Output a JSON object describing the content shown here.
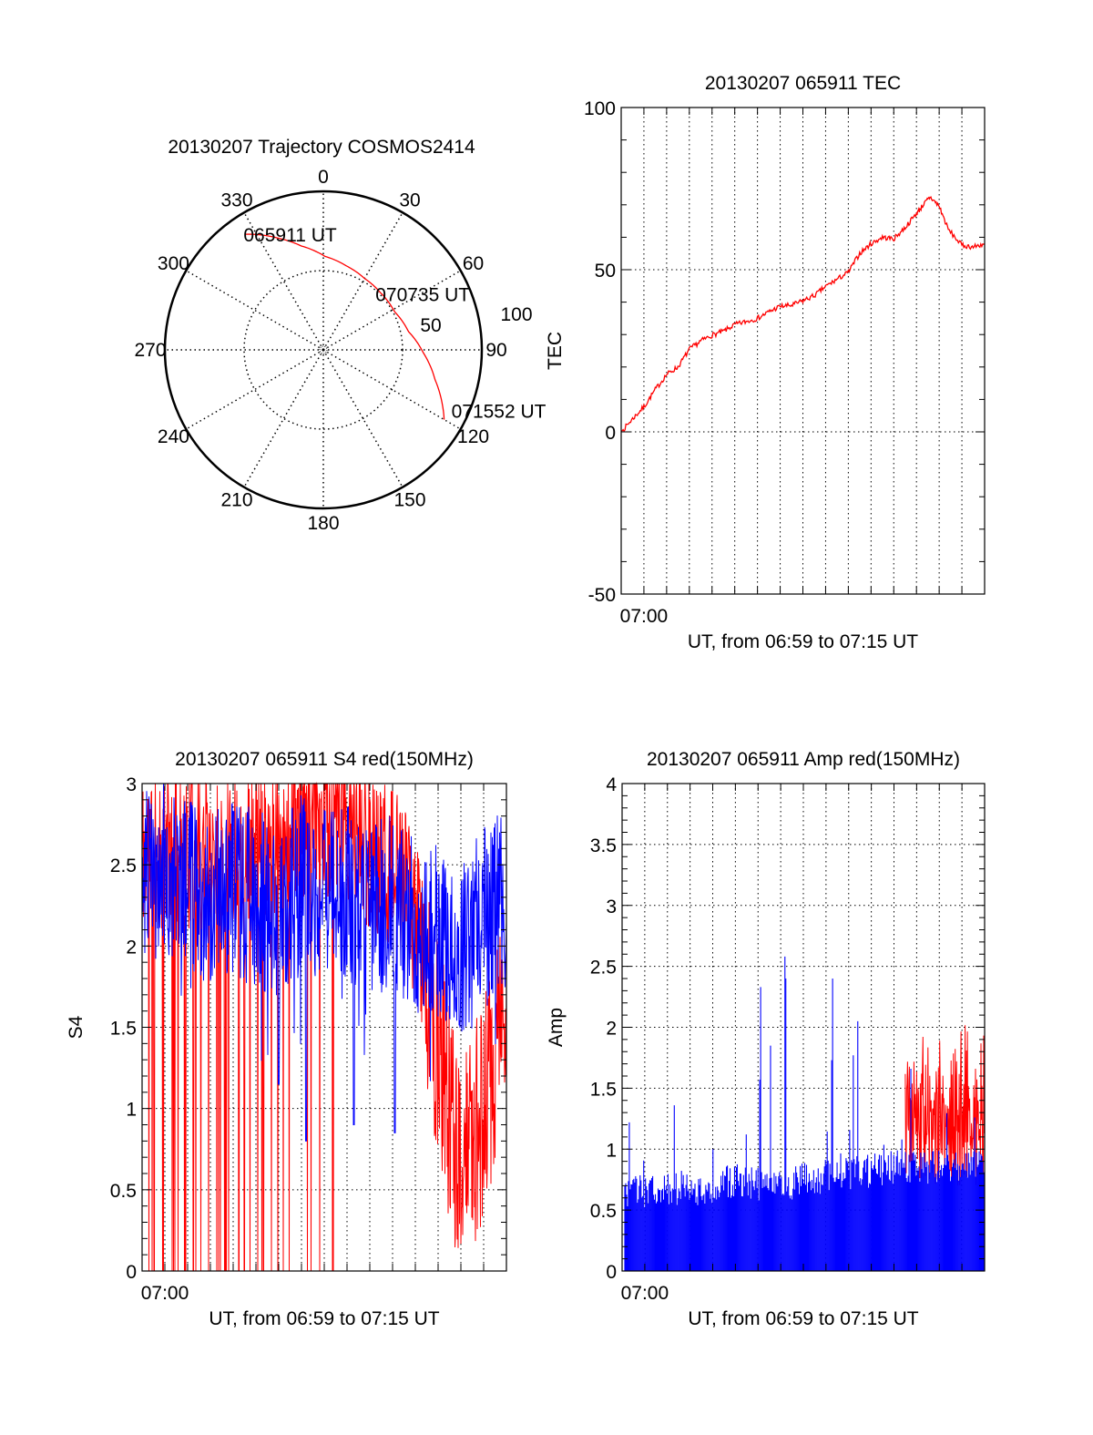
{
  "colors": {
    "red": "#ff0000",
    "blue": "#0000ff",
    "axis": "#000000"
  },
  "chart_data": [
    {
      "id": "polar",
      "type": "polar",
      "title": "20130207 Trajectory COSMOS2414",
      "angle_ticks": [
        "0",
        "30",
        "60",
        "90",
        "120",
        "150",
        "180",
        "210",
        "240",
        "270",
        "300",
        "330"
      ],
      "radial_ticks": [
        "50",
        "100"
      ],
      "radial_max": 100,
      "grid": true,
      "trajectory": [
        [
          326,
          88
        ],
        [
          338,
          76
        ],
        [
          348,
          67
        ],
        [
          1,
          59
        ],
        [
          15,
          55
        ],
        [
          30,
          52
        ],
        [
          45,
          51
        ],
        [
          62,
          51
        ],
        [
          78,
          55
        ],
        [
          91.5,
          63
        ],
        [
          105,
          73
        ],
        [
          120,
          88
        ]
      ],
      "annotations": [
        {
          "label": "065911 UT",
          "az": 326,
          "r": 88
        },
        {
          "label": "070735 UT",
          "az": 44,
          "r": 49
        },
        {
          "label": "071552 UT",
          "az": 120,
          "r": 88
        }
      ],
      "side_label": "TEC"
    },
    {
      "id": "tec",
      "type": "line",
      "title": "20130207 065911 TEC",
      "xlabel": "UT, from 06:59 to 07:15 UT",
      "ylabel": "TEC",
      "x_unit": "minutes after 06:59",
      "xlim": [
        0,
        16
      ],
      "ylim": [
        -50,
        100
      ],
      "yticks": [
        "100",
        "50",
        "0",
        "-50"
      ],
      "xtick_label": "07:00",
      "grid": true,
      "series": [
        {
          "name": "TEC",
          "color": "#ff0000",
          "x": [
            0,
            0.5,
            1,
            1.5,
            2,
            2.5,
            3,
            3.5,
            4,
            4.5,
            5,
            5.5,
            6,
            6.5,
            7,
            7.5,
            8,
            8.5,
            9,
            9.5,
            10,
            10.5,
            11,
            11.5,
            12,
            12.5,
            13,
            13.3,
            13.6,
            14,
            14.4,
            15,
            15.5,
            16
          ],
          "y": [
            0,
            4,
            7.7,
            13,
            17.7,
            20,
            25.4,
            28,
            29.8,
            31,
            33,
            34,
            35,
            37,
            38.7,
            39,
            40.4,
            42,
            44.8,
            47,
            49.2,
            55,
            58,
            60,
            59.5,
            63,
            67.3,
            70,
            72.4,
            69.6,
            62.4,
            57.5,
            57,
            58
          ]
        }
      ]
    },
    {
      "id": "s4",
      "type": "line",
      "title": "20130207 065911 S4 red(150MHz)",
      "xlabel": "UT, from 06:59 to 07:15 UT",
      "ylabel": "S4",
      "x_unit": "minutes after 06:59",
      "xlim": [
        0,
        16
      ],
      "ylim": [
        0,
        3
      ],
      "yticks": [
        "3",
        "2.5",
        "2",
        "1.5",
        "1",
        "0.5",
        "0"
      ],
      "xtick_label": "07:00",
      "grid": true,
      "series": [
        {
          "name": "red",
          "color": "#ff0000",
          "minute_mean": [
            2.6,
            2.6,
            2.6,
            2.6,
            2.6,
            2.6,
            2.7,
            2.8,
            2.8,
            2.7,
            2.6,
            2.5,
            2.2,
            1.4,
            0.55,
            1.0,
            1.6
          ],
          "spread": 0.5,
          "dropout_rate": [
            0.3,
            0.35,
            0.35,
            0.3,
            0.3,
            0.3,
            0.3,
            0.2,
            0.1,
            0.02,
            0,
            0,
            0,
            0,
            0,
            0,
            0
          ]
        },
        {
          "name": "blue",
          "color": "#0000ff",
          "minute_mean": [
            2.4,
            2.5,
            2.4,
            2.3,
            2.35,
            2.3,
            2.2,
            2.4,
            2.3,
            2.35,
            2.2,
            2.3,
            2.1,
            2.1,
            2.0,
            2.2,
            2.3
          ],
          "spread": 0.55,
          "dips": [
            [
              6.0,
              1.15
            ],
            [
              7.2,
              0.8
            ],
            [
              9.3,
              0.9
            ],
            [
              11.1,
              0.85
            ]
          ]
        }
      ]
    },
    {
      "id": "amp",
      "type": "bar",
      "title": "20130207 065911 Amp red(150MHz)",
      "xlabel": "UT, from 06:59 to 07:15 UT",
      "ylabel": "Amp",
      "x_unit": "minutes after 06:59",
      "xlim": [
        0,
        16
      ],
      "ylim": [
        0,
        4
      ],
      "yticks": [
        "4",
        "3.5",
        "3",
        "2.5",
        "2",
        "1.5",
        "1",
        "0.5",
        "0"
      ],
      "xtick_label": "07:00",
      "grid": true,
      "series": [
        {
          "name": "red",
          "color": "#ff0000",
          "range": [
            12.5,
            16
          ],
          "low": 0.7,
          "high": 2.2
        },
        {
          "name": "blue",
          "color": "#0000ff",
          "minute_mean": [
            0.65,
            0.65,
            0.68,
            0.68,
            0.65,
            0.75,
            0.72,
            0.7,
            0.75,
            0.78,
            0.8,
            0.82,
            0.85,
            0.85,
            0.85,
            0.85,
            0.85
          ],
          "spread": 0.14,
          "spikes": [
            [
              0.33,
              1.22
            ],
            [
              2.3,
              1.36
            ],
            [
              6.07,
              1.57
            ],
            [
              6.1,
              2.33
            ],
            [
              6.57,
              1.85
            ],
            [
              7.2,
              2.58
            ],
            [
              7.23,
              2.4
            ],
            [
              9.3,
              2.4
            ],
            [
              9.27,
              1.73
            ],
            [
              10.2,
              1.77
            ],
            [
              10.4,
              2.05
            ],
            [
              12.75,
              1.66
            ]
          ]
        }
      ]
    }
  ]
}
